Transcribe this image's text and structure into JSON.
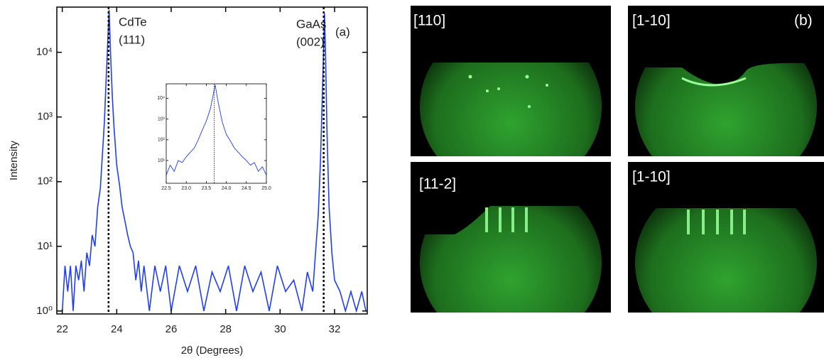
{
  "chart_data": [
    {
      "type": "line",
      "log_y": true,
      "color": "#1f3dff",
      "xlabel": "2θ (Degrees)",
      "ylabel": "Intensity",
      "x": [
        22.0,
        22.1,
        22.2,
        22.3,
        22.4,
        22.5,
        22.6,
        22.7,
        22.8,
        22.9,
        23.0,
        23.1,
        23.2,
        23.3,
        23.4,
        23.5,
        23.55,
        23.6,
        23.65,
        23.72,
        23.78,
        23.84,
        23.9,
        24.0,
        24.1,
        24.2,
        24.3,
        24.4,
        24.5,
        24.6,
        24.7,
        24.8,
        24.9,
        25.0,
        25.2,
        25.4,
        25.6,
        25.8,
        26.0,
        26.3,
        26.6,
        26.9,
        27.2,
        27.5,
        27.8,
        28.1,
        28.4,
        28.7,
        29.0,
        29.3,
        29.6,
        29.9,
        30.2,
        30.5,
        30.8,
        31.0,
        31.2,
        31.3,
        31.4,
        31.48,
        31.55,
        31.6,
        31.63,
        31.67,
        31.72,
        31.8,
        31.9,
        32.0,
        32.2,
        32.4,
        32.6,
        32.8,
        33.0,
        33.15
      ],
      "values": [
        1,
        5,
        2,
        5,
        1,
        5,
        3,
        6,
        2,
        8,
        5,
        15,
        10,
        40,
        80,
        400,
        900,
        3000,
        9000,
        45000,
        8000,
        2000,
        700,
        180,
        90,
        40,
        25,
        15,
        10,
        8,
        3,
        6,
        2,
        5,
        1,
        5,
        2,
        5,
        1,
        5,
        2,
        5,
        1,
        4,
        2,
        5,
        1,
        5,
        2,
        4,
        1,
        5,
        2,
        3,
        1,
        4,
        2,
        8,
        30,
        200,
        2000,
        12000,
        40000,
        9000,
        600,
        40,
        8,
        3,
        2,
        1,
        2,
        1,
        2,
        1
      ],
      "xlim": [
        21.8,
        33.2
      ],
      "xticks": [
        22,
        24,
        26,
        28,
        30,
        32
      ],
      "ylim": [
        0.9,
        50000
      ],
      "yticks": [
        {
          "value": 1,
          "label": "10⁰"
        },
        {
          "value": 10,
          "label": "10¹"
        },
        {
          "value": 100,
          "label": "10²"
        },
        {
          "value": 1000,
          "label": "10³"
        },
        {
          "value": 10000,
          "label": "10⁴"
        }
      ],
      "ref_lines": [
        23.7,
        31.6
      ],
      "annotations": [
        "CdTe",
        "(111)",
        "GaAs",
        "(002)",
        "(a)"
      ]
    },
    {
      "type": "line",
      "log_y": true,
      "color": "#1f3dff",
      "x": [
        22.5,
        22.6,
        22.7,
        22.8,
        22.9,
        23.0,
        23.1,
        23.2,
        23.3,
        23.4,
        23.5,
        23.6,
        23.65,
        23.72,
        23.8,
        23.9,
        24.0,
        24.1,
        24.2,
        24.3,
        24.4,
        24.5,
        24.6,
        24.7,
        24.8,
        24.9,
        25.0
      ],
      "values": [
        2,
        6,
        3,
        10,
        8,
        15,
        25,
        40,
        100,
        300,
        800,
        3000,
        9000,
        45000,
        6000,
        700,
        180,
        90,
        40,
        25,
        15,
        10,
        6,
        8,
        3,
        5,
        2
      ],
      "xlim": [
        22.5,
        25.0
      ],
      "xticks": [
        {
          "value": 22.5,
          "label": "22.5"
        },
        {
          "value": 23.0,
          "label": "23.0"
        },
        {
          "value": 23.5,
          "label": "23.5"
        },
        {
          "value": 24.0,
          "label": "24.0"
        },
        {
          "value": 24.5,
          "label": "24.5"
        },
        {
          "value": 25.0,
          "label": "25.0"
        }
      ],
      "ylim": [
        0.8,
        50000
      ],
      "yticks": [
        {
          "value": 10,
          "label": "10¹"
        },
        {
          "value": 100,
          "label": "10²"
        },
        {
          "value": 1000,
          "label": "10³"
        },
        {
          "value": 10000,
          "label": "10⁴"
        }
      ],
      "ref_lines": [
        23.7
      ]
    }
  ],
  "panels": [
    {
      "label": "[110]"
    },
    {
      "label": "[1-10]"
    },
    {
      "label": "[11-2]"
    },
    {
      "label": "[1-10]"
    }
  ],
  "panel_tag": "(b)"
}
